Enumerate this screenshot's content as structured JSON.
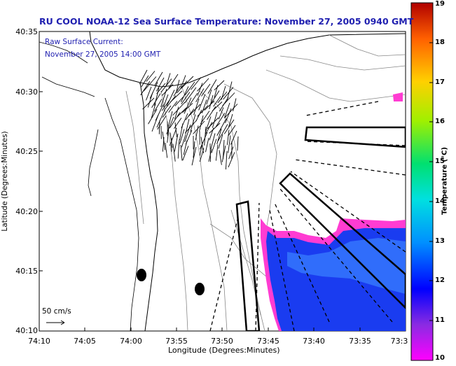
{
  "title": "RU COOL  NOAA-12  Sea Surface Temperature:  November 27, 2005 0940 GMT",
  "current_label": "Raw Surface Current:",
  "current_time": "November 27, 2005 14:00 GMT",
  "scale_label": "50 cm/s",
  "x_axis": {
    "label": "Longitude (Degrees:Minutes)",
    "ticks": [
      "74:10",
      "74:05",
      "74:00",
      "73:55",
      "73:50",
      "73:45",
      "73:40",
      "73:35",
      "73:3"
    ]
  },
  "y_axis": {
    "label": "Latitude (Degrees:Minutes)",
    "ticks": [
      "40:35",
      "40:30",
      "40:25",
      "40:20",
      "40:15",
      "40:10"
    ]
  },
  "colorbar": {
    "label": "Temperature (°C)",
    "ticks": [
      "19",
      "18",
      "17",
      "16",
      "15",
      "14",
      "13",
      "12",
      "11",
      "10"
    ],
    "min": 10,
    "max": 19
  },
  "colors": {
    "title": "#1f1fb0",
    "sst_cold": "#1a3cf0",
    "sst_warm": "#3a82ff",
    "sst_edge": "#ff3cd2",
    "contour": "#888888"
  }
}
